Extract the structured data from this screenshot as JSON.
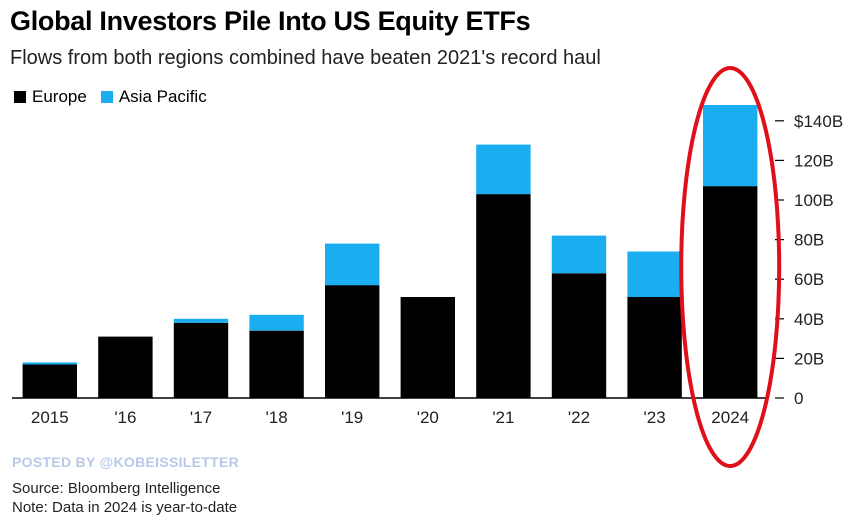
{
  "header": {
    "title": "Global Investors Pile Into US Equity ETFs",
    "subtitle": "Flows from both regions combined have beaten 2021's record haul"
  },
  "footer": {
    "watermark": "POSTED BY @KOBEISSILETTER",
    "source": "Source: Bloomberg Intelligence",
    "note": "Note: Data in 2024 is year-to-date"
  },
  "colors": {
    "europe": "#000000",
    "asia_pacific": "#1aaef0",
    "highlight_ellipse": "#e0101b",
    "tick_text": "#222222"
  },
  "chart_data": {
    "type": "bar",
    "stacked": true,
    "title": "Global Investors Pile Into US Equity ETFs",
    "subtitle": "Flows from both regions combined have beaten 2021's record haul",
    "categories": [
      "2015",
      "'16",
      "'17",
      "'18",
      "'19",
      "'20",
      "'21",
      "'22",
      "'23",
      "2024"
    ],
    "series": [
      {
        "name": "Europe",
        "color": "#000000",
        "values": [
          17,
          31,
          38,
          34,
          57,
          51,
          103,
          63,
          51,
          107
        ]
      },
      {
        "name": "Asia Pacific",
        "color": "#1aaef0",
        "values": [
          1,
          0,
          2,
          8,
          21,
          0,
          25,
          19,
          23,
          41
        ]
      }
    ],
    "ylim": [
      0,
      150
    ],
    "yticks": [
      0,
      20,
      40,
      60,
      80,
      100,
      120,
      140
    ],
    "ytick_labels": [
      "0",
      "20B",
      "40B",
      "60B",
      "80B",
      "100B",
      "120B",
      "$140B"
    ],
    "y_axis_position": "right",
    "grid": false,
    "legend": "top-left",
    "annotation": {
      "type": "ellipse",
      "category": "2024"
    }
  }
}
